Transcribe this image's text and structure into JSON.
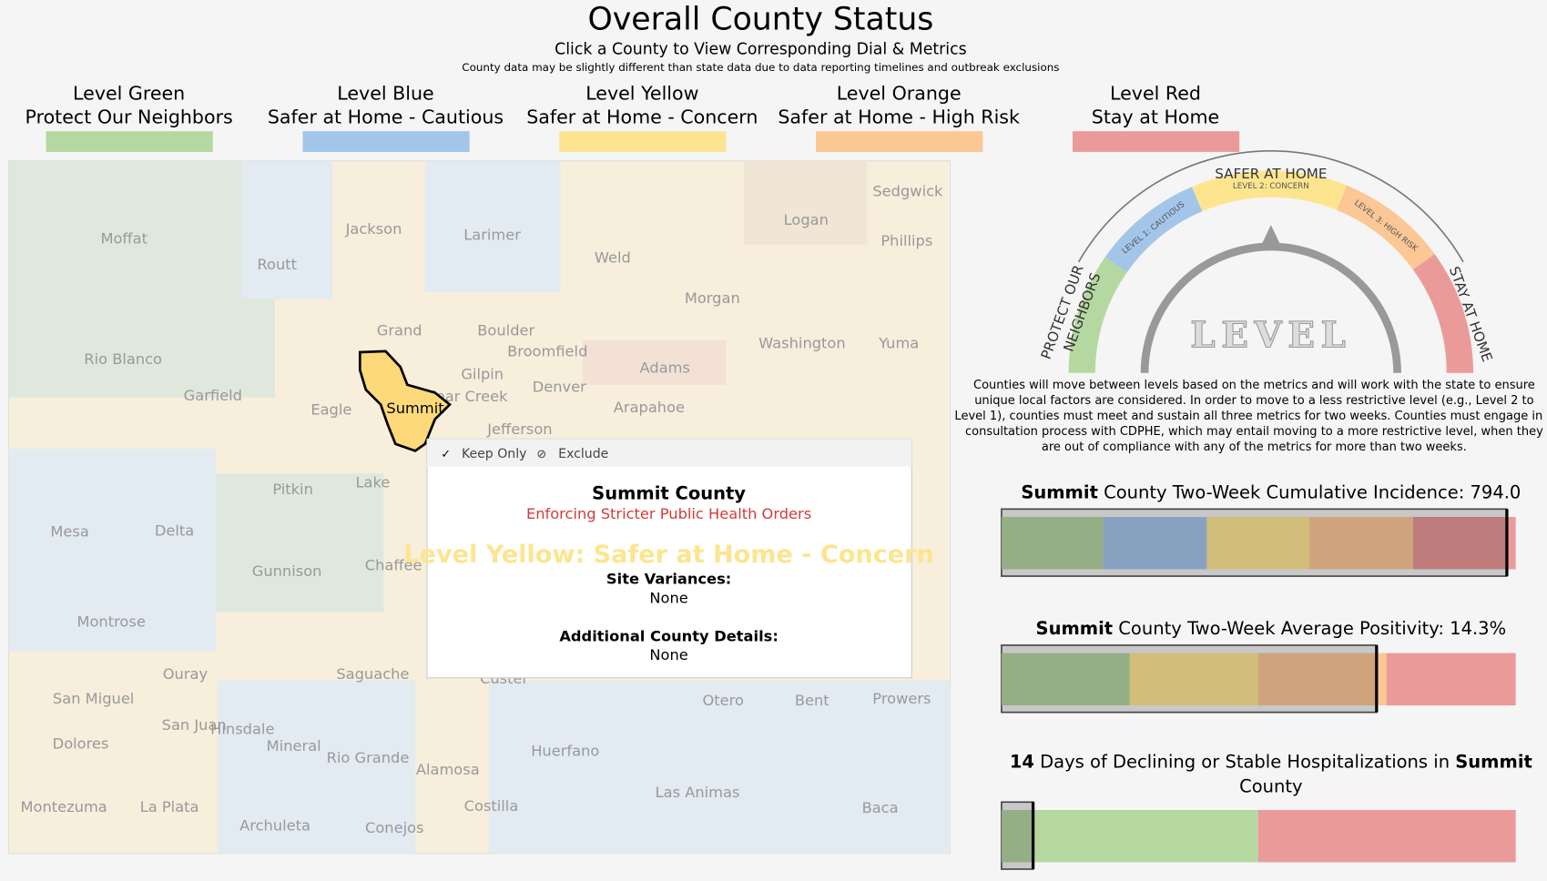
{
  "header": {
    "title": "Overall County Status",
    "subtitle": "Click a County to View Corresponding Dial & Metrics",
    "note": "County data may be slightly different than state data due to data reporting timelines and outbreak exclusions"
  },
  "legend": [
    {
      "level": "Level Green",
      "name": "Protect Our Neighbors",
      "color": "#b5d8a1"
    },
    {
      "level": "Level Blue",
      "name": "Safer at Home - Cautious",
      "color": "#a3c5e9"
    },
    {
      "level": "Level Yellow",
      "name": "Safer at Home - Concern",
      "color": "#fde590"
    },
    {
      "level": "Level Orange",
      "name": "Safer at Home - High Risk",
      "color": "#fbc794"
    },
    {
      "level": "Level Red",
      "name": "Stay at Home",
      "color": "#eb9a9a"
    }
  ],
  "map": {
    "counties": [
      "Moffat",
      "Routt",
      "Jackson",
      "Larimer",
      "Weld",
      "Logan",
      "Sedgwick",
      "Phillips",
      "Morgan",
      "Rio Blanco",
      "Grand",
      "Boulder",
      "Broomfield",
      "Gilpin",
      "Adams",
      "Washington",
      "Yuma",
      "Garfield",
      "Eagle",
      "Summit",
      "Clear Creek",
      "Denver",
      "Arapahoe",
      "Jefferson",
      "Pitkin",
      "Lake",
      "Mesa",
      "Delta",
      "Gunnison",
      "Chaffee",
      "Montrose",
      "Ouray",
      "Saguache",
      "Custer",
      "Otero",
      "Bent",
      "Prowers",
      "San Miguel",
      "San Juan",
      "Hinsdale",
      "Dolores",
      "Mineral",
      "Rio Grande",
      "Alamosa",
      "Huerfano",
      "Las Animas",
      "Baca",
      "Montezuma",
      "La Plata",
      "Archuleta",
      "Conejos",
      "Costilla"
    ]
  },
  "tooltip": {
    "actions": [
      "Keep Only",
      "Exclude"
    ],
    "county": "Summit County",
    "status": "Enforcing Stricter Public Health Orders",
    "level": "Level Yellow: Safer at Home - Concern",
    "variances_label": "Site Variances:",
    "variances": "None",
    "details_label": "Additional County Details:",
    "details": "None"
  },
  "dial": {
    "top": "SAFER AT HOME",
    "left": [
      "PROTECT OUR",
      "NEIGHBORS"
    ],
    "right": "STAY AT HOME",
    "segments": [
      "LEVEL 1: CAUTIOUS",
      "LEVEL 2: CONCERN",
      "LEVEL 3: HIGH RISK"
    ],
    "center": "LEVEL"
  },
  "description": [
    "Counties will move between levels based on the metrics and will work with the state to ensure",
    "unique local factors are considered. In order to move to a less restrictive level (e.g., Level 2 to",
    "Level 1), counties must meet and sustain all three metrics for two weeks. Counties must engage in a",
    "consultation process with CDPHE, which may entail moving to a more restrictive level, when they",
    "are out of compliance with any of the metrics for more than two weeks."
  ],
  "metrics": [
    {
      "lines": [
        [
          {
            "text": "Summit",
            "bold": true
          },
          {
            "text": " County Two-Week Cumulative Incidence: "
          },
          {
            "text": "794.0"
          }
        ]
      ]
    },
    {
      "lines": [
        [
          {
            "text": "Summit",
            "bold": true
          },
          {
            "text": " County Two-Week Average Positivity: "
          },
          {
            "text": "14.3%"
          }
        ]
      ]
    },
    {
      "lines": [
        [
          {
            "text": "14",
            "bold": true
          },
          {
            "text": " Days of Declining or Stable Hospitalizations in "
          },
          {
            "text": "Summit",
            "bold": true
          }
        ],
        [
          {
            "text": "County"
          }
        ]
      ]
    }
  ]
}
